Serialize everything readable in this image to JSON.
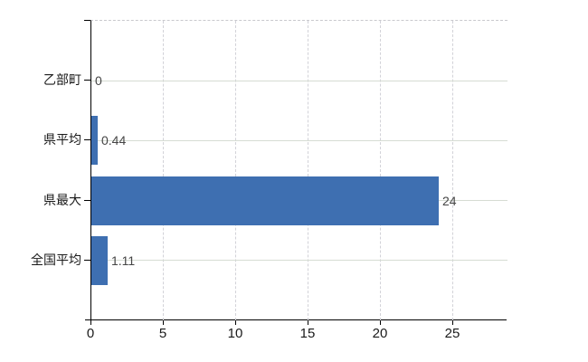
{
  "chart_data": {
    "type": "bar",
    "orientation": "horizontal",
    "title": "",
    "categories": [
      "乙部町",
      "県平均",
      "県最大",
      "全国平均"
    ],
    "values": [
      0,
      0.44,
      24,
      1.11
    ],
    "value_labels": [
      "0",
      "0.44",
      "24",
      "1.11"
    ],
    "x_ticks": [
      0,
      5,
      10,
      15,
      20,
      25
    ],
    "x_tick_labels": [
      "0",
      "5",
      "10",
      "15",
      "20",
      "25"
    ],
    "xlim": [
      0,
      28.75
    ],
    "grid": true,
    "legend": false
  },
  "colors": {
    "bar": "#3e6fb1",
    "v_grid": "#d2d2d8",
    "h_grid": "#d6dcd3",
    "axis": "#000000",
    "tick_text": "#1a1a1a",
    "value_text": "#454545",
    "background": "#ffffff"
  }
}
